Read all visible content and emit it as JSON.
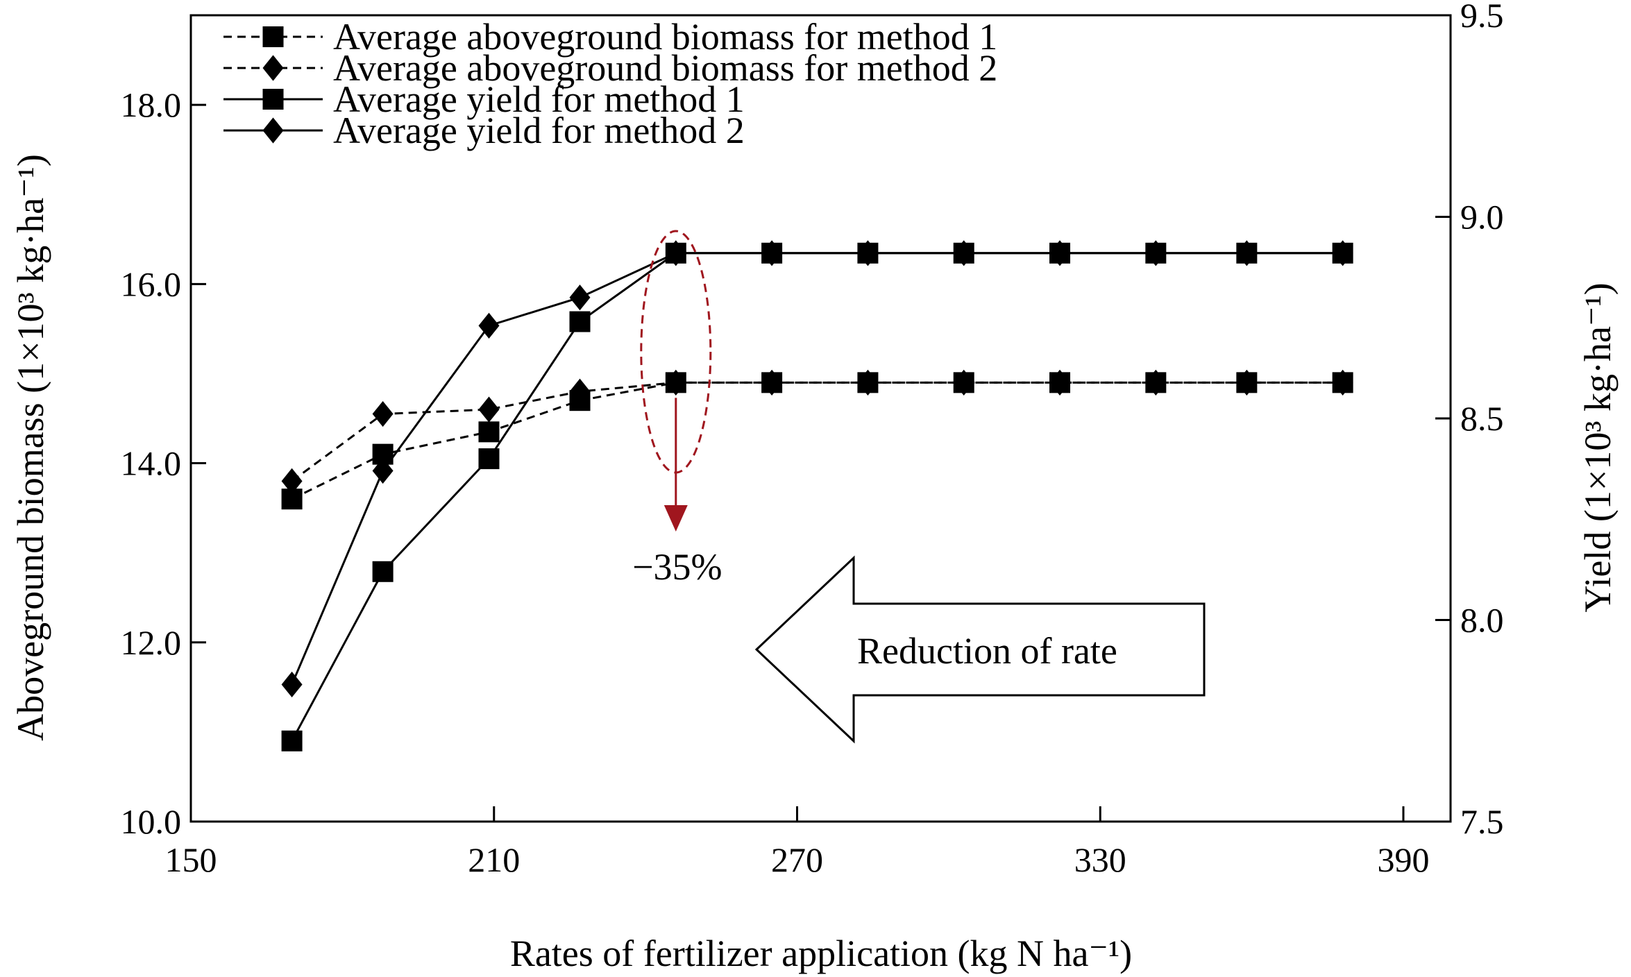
{
  "chart_data": {
    "type": "line",
    "xlabel": "Rates of fertilizer application (kg N ha⁻¹)",
    "ylabel_left": "Aboveground biomass (1×10³ kg·ha⁻¹)",
    "ylabel_right": "Yield (1×10³ kg·ha⁻¹)",
    "xlim": [
      150,
      395
    ],
    "ylim_left": [
      10.0,
      19.0
    ],
    "ylim_right": [
      7.5,
      9.5
    ],
    "xticks": [
      150,
      210,
      270,
      330,
      390
    ],
    "yticks_left": [
      "10.0",
      "12.0",
      "14.0",
      "16.0",
      "18.0"
    ],
    "yticks_right": [
      "7.5",
      "8.0",
      "8.5",
      "9.0",
      "9.5"
    ],
    "grid": false,
    "legend_position": "top-left",
    "series": [
      {
        "name": "Average aboveground biomass for method 1",
        "axis": "left",
        "line": "dashed",
        "marker": "square",
        "x": [
          170,
          188,
          209,
          227,
          246,
          265,
          284,
          303,
          322,
          341,
          359,
          378
        ],
        "y": [
          13.6,
          14.1,
          14.35,
          14.7,
          14.9,
          14.9,
          14.9,
          14.9,
          14.9,
          14.9,
          14.9,
          14.9
        ]
      },
      {
        "name": "Average aboveground biomass for method 2",
        "axis": "left",
        "line": "dashed",
        "marker": "diamond",
        "x": [
          170,
          188,
          209,
          227,
          246,
          265,
          284,
          303,
          322,
          341,
          359,
          378
        ],
        "y": [
          13.8,
          14.55,
          14.6,
          14.8,
          14.9,
          14.9,
          14.9,
          14.9,
          14.9,
          14.9,
          14.9,
          14.9
        ]
      },
      {
        "name": "Average yield for method 1",
        "axis": "right",
        "line": "solid",
        "marker": "square",
        "x": [
          170,
          188,
          209,
          227,
          246,
          265,
          284,
          303,
          322,
          341,
          359,
          378
        ],
        "y": [
          7.7,
          8.12,
          8.4,
          8.74,
          8.91,
          8.91,
          8.91,
          8.91,
          8.91,
          8.91,
          8.91,
          8.91
        ]
      },
      {
        "name": "Average yield for method 2",
        "axis": "right",
        "line": "solid",
        "marker": "diamond",
        "x": [
          170,
          188,
          209,
          227,
          246,
          265,
          284,
          303,
          322,
          341,
          359,
          378
        ],
        "y": [
          7.84,
          8.37,
          8.73,
          8.8,
          8.91,
          8.91,
          8.91,
          8.91,
          8.91,
          8.91,
          8.91,
          8.91
        ]
      }
    ],
    "annotations": {
      "highlight_x": 246,
      "arrow_label": "−35%",
      "block_arrow_label": "Reduction of rate",
      "highlight_color": "#a0161e"
    }
  }
}
